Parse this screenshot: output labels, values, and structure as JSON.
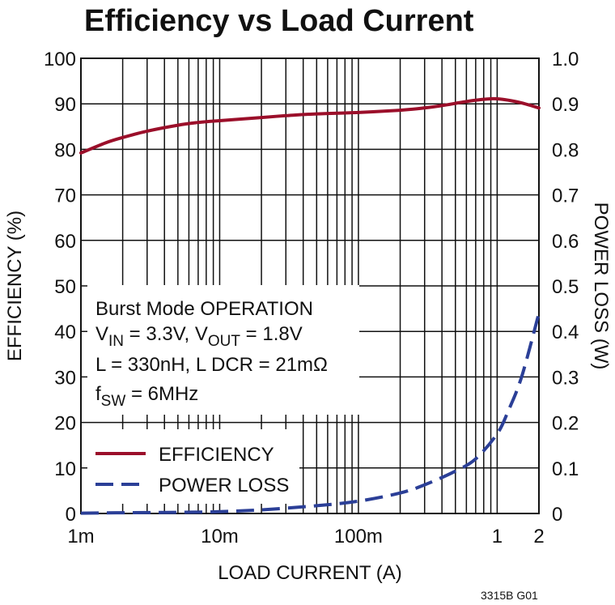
{
  "chart_data": {
    "type": "line",
    "title": "Efficiency vs Load Current",
    "xlabel": "LOAD CURRENT (A)",
    "ylabel_left": "EFFICIENCY (%)",
    "ylabel_right": "POWER LOSS (W)",
    "x_scale": "log",
    "xlim": [
      0.001,
      2
    ],
    "x_ticks": [
      {
        "value": 0.001,
        "label": "1m"
      },
      {
        "value": 0.01,
        "label": "10m"
      },
      {
        "value": 0.1,
        "label": "100m"
      },
      {
        "value": 1,
        "label": "1"
      },
      {
        "value": 2,
        "label": "2"
      }
    ],
    "ylim_left": [
      0,
      100
    ],
    "y_ticks_left": [
      "0",
      "10",
      "20",
      "30",
      "40",
      "50",
      "60",
      "70",
      "80",
      "90",
      "100"
    ],
    "ylim_right": [
      0,
      1.0
    ],
    "y_ticks_right": [
      "0",
      "0.1",
      "0.2",
      "0.3",
      "0.4",
      "0.5",
      "0.6",
      "0.7",
      "0.8",
      "0.9",
      "1.0"
    ],
    "grid": true,
    "legend_position": "bottom-left",
    "series": [
      {
        "name": "EFFICIENCY",
        "axis": "left",
        "color": "#9b0f2a",
        "style": "solid",
        "x": [
          0.001,
          0.0015,
          0.002,
          0.003,
          0.005,
          0.007,
          0.01,
          0.02,
          0.03,
          0.05,
          0.1,
          0.2,
          0.3,
          0.4,
          0.5,
          0.6,
          0.7,
          0.8,
          0.9,
          1.0,
          1.2,
          1.5,
          2.0
        ],
        "y": [
          79.2,
          81.4,
          82.6,
          84.0,
          85.3,
          85.9,
          86.3,
          87.0,
          87.4,
          87.8,
          88.1,
          88.6,
          89.1,
          89.6,
          90.1,
          90.5,
          90.8,
          91.0,
          91.1,
          91.1,
          90.8,
          90.2,
          89.1
        ]
      },
      {
        "name": "POWER LOSS",
        "axis": "right",
        "color": "#2b3f97",
        "style": "dashed",
        "x": [
          0.001,
          0.003,
          0.005,
          0.01,
          0.02,
          0.05,
          0.1,
          0.2,
          0.3,
          0.5,
          0.7,
          1.0,
          1.2,
          1.5,
          2.0
        ],
        "y": [
          0.0008,
          0.002,
          0.0025,
          0.004,
          0.008,
          0.017,
          0.027,
          0.045,
          0.063,
          0.093,
          0.12,
          0.175,
          0.225,
          0.3,
          0.44
        ]
      }
    ],
    "annotation": {
      "line1": "Burst Mode OPERATION",
      "line2_vin": "V",
      "line2_vin_sub": "IN",
      "line2_mid": " = 3.3V, V",
      "line2_vout_sub": "OUT",
      "line2_end": " = 1.8V",
      "line3": "L = 330nH, L DCR = 21mΩ",
      "line4_f": "f",
      "line4_sub": "SW",
      "line4_end": " = 6MHz"
    },
    "figure_code": "3315B G01"
  }
}
